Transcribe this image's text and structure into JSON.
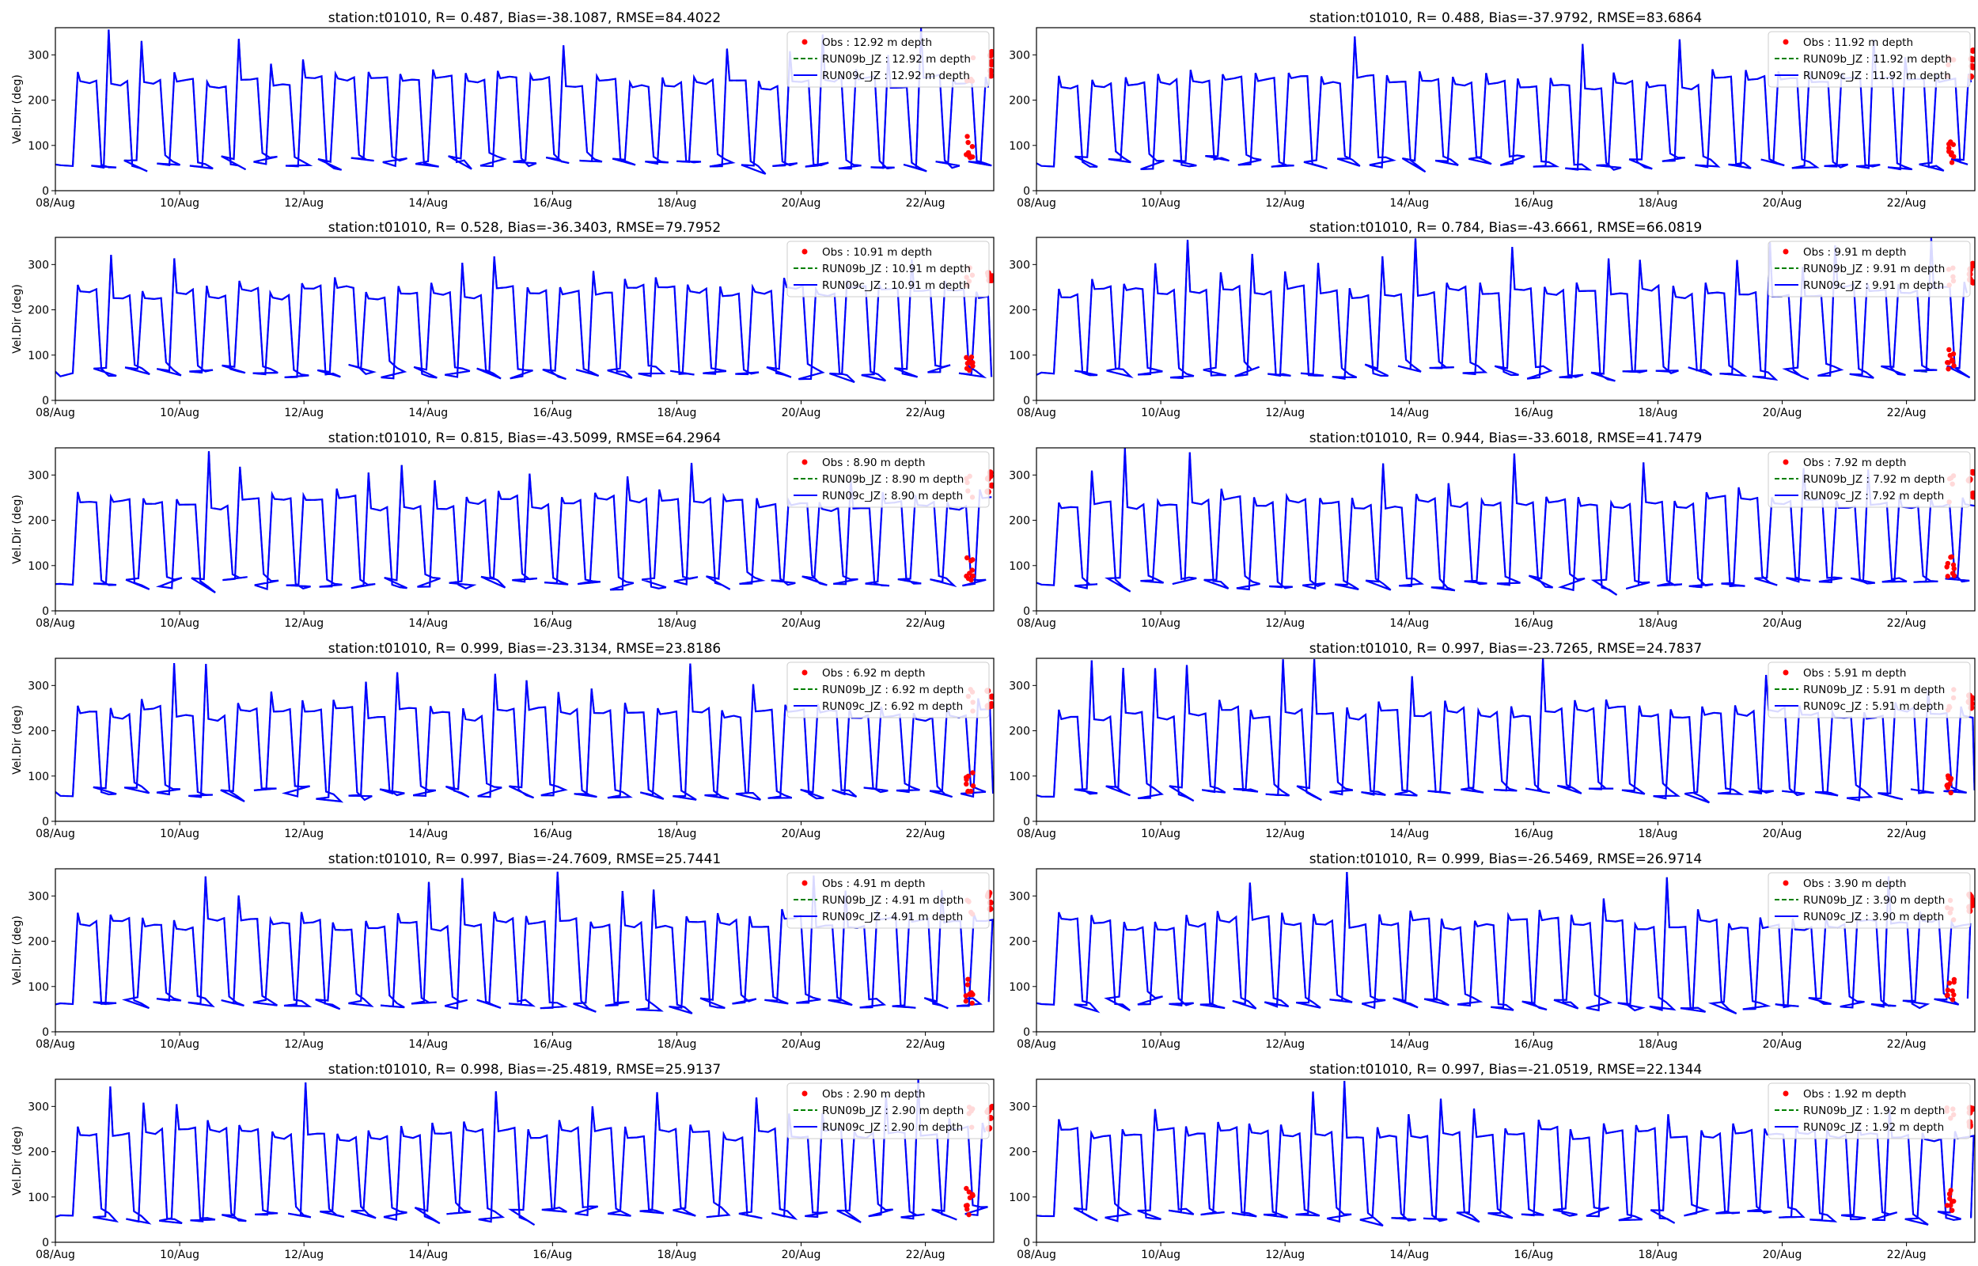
{
  "figure": {
    "background": "#ffffff"
  },
  "styles": {
    "obs_color": "#ff0000",
    "run09b_color": "#008000",
    "run09c_color": "#0000ff"
  },
  "chart_data": [
    {
      "type": "line",
      "title": "station:t01010, R= 0.487, Bias=-38.1087, RMSE=84.4022",
      "ylabel": "Vel.Dir (deg)",
      "ylim": [
        0,
        360
      ],
      "yticks": [
        0,
        100,
        200,
        300
      ],
      "xticks": [
        "08/Aug",
        "10/Aug",
        "12/Aug",
        "14/Aug",
        "16/Aug",
        "18/Aug",
        "20/Aug",
        "22/Aug"
      ],
      "legend": "top-right",
      "series": [
        {
          "name": "Obs : 12.92 m depth",
          "style": "dots"
        },
        {
          "name": "RUN09b_JZ : 12.92 m depth",
          "style": "dashed"
        },
        {
          "name": "RUN09c_JZ : 12.92 m depth",
          "style": "solid"
        }
      ]
    },
    {
      "type": "line",
      "title": "station:t01010, R= 0.488, Bias=-37.9792, RMSE=83.6864",
      "ylabel": "",
      "ylim": [
        0,
        360
      ],
      "yticks": [
        0,
        100,
        200,
        300
      ],
      "xticks": [
        "08/Aug",
        "10/Aug",
        "12/Aug",
        "14/Aug",
        "16/Aug",
        "18/Aug",
        "20/Aug",
        "22/Aug"
      ],
      "legend": "top-right",
      "series": [
        {
          "name": "Obs : 11.92 m depth",
          "style": "dots"
        },
        {
          "name": "RUN09b_JZ : 11.92 m depth",
          "style": "dashed"
        },
        {
          "name": "RUN09c_JZ : 11.92 m depth",
          "style": "solid"
        }
      ]
    },
    {
      "type": "line",
      "title": "station:t01010, R= 0.528, Bias=-36.3403, RMSE=79.7952",
      "ylabel": "Vel.Dir (deg)",
      "ylim": [
        0,
        360
      ],
      "yticks": [
        0,
        100,
        200,
        300
      ],
      "xticks": [
        "08/Aug",
        "10/Aug",
        "12/Aug",
        "14/Aug",
        "16/Aug",
        "18/Aug",
        "20/Aug",
        "22/Aug"
      ],
      "legend": "top-right",
      "series": [
        {
          "name": "Obs : 10.91 m depth",
          "style": "dots"
        },
        {
          "name": "RUN09b_JZ : 10.91 m depth",
          "style": "dashed"
        },
        {
          "name": "RUN09c_JZ : 10.91 m depth",
          "style": "solid"
        }
      ]
    },
    {
      "type": "line",
      "title": "station:t01010, R= 0.784, Bias=-43.6661, RMSE=66.0819",
      "ylabel": "",
      "ylim": [
        0,
        360
      ],
      "yticks": [
        0,
        100,
        200,
        300
      ],
      "xticks": [
        "08/Aug",
        "10/Aug",
        "12/Aug",
        "14/Aug",
        "16/Aug",
        "18/Aug",
        "20/Aug",
        "22/Aug"
      ],
      "legend": "top-right",
      "series": [
        {
          "name": "Obs : 9.91 m depth",
          "style": "dots"
        },
        {
          "name": "RUN09b_JZ : 9.91 m depth",
          "style": "dashed"
        },
        {
          "name": "RUN09c_JZ : 9.91 m depth",
          "style": "solid"
        }
      ]
    },
    {
      "type": "line",
      "title": "station:t01010, R= 0.815, Bias=-43.5099, RMSE=64.2964",
      "ylabel": "Vel.Dir (deg)",
      "ylim": [
        0,
        360
      ],
      "yticks": [
        0,
        100,
        200,
        300
      ],
      "xticks": [
        "08/Aug",
        "10/Aug",
        "12/Aug",
        "14/Aug",
        "16/Aug",
        "18/Aug",
        "20/Aug",
        "22/Aug"
      ],
      "legend": "top-right",
      "series": [
        {
          "name": "Obs : 8.90 m depth",
          "style": "dots"
        },
        {
          "name": "RUN09b_JZ : 8.90 m depth",
          "style": "dashed"
        },
        {
          "name": "RUN09c_JZ : 8.90 m depth",
          "style": "solid"
        }
      ]
    },
    {
      "type": "line",
      "title": "station:t01010, R= 0.944, Bias=-33.6018, RMSE=41.7479",
      "ylabel": "",
      "ylim": [
        0,
        360
      ],
      "yticks": [
        0,
        100,
        200,
        300
      ],
      "xticks": [
        "08/Aug",
        "10/Aug",
        "12/Aug",
        "14/Aug",
        "16/Aug",
        "18/Aug",
        "20/Aug",
        "22/Aug"
      ],
      "legend": "top-right",
      "series": [
        {
          "name": "Obs : 7.92 m depth",
          "style": "dots"
        },
        {
          "name": "RUN09b_JZ : 7.92 m depth",
          "style": "dashed"
        },
        {
          "name": "RUN09c_JZ : 7.92 m depth",
          "style": "solid"
        }
      ]
    },
    {
      "type": "line",
      "title": "station:t01010, R= 0.999, Bias=-23.3134, RMSE=23.8186",
      "ylabel": "Vel.Dir (deg)",
      "ylim": [
        0,
        360
      ],
      "yticks": [
        0,
        100,
        200,
        300
      ],
      "xticks": [
        "08/Aug",
        "10/Aug",
        "12/Aug",
        "14/Aug",
        "16/Aug",
        "18/Aug",
        "20/Aug",
        "22/Aug"
      ],
      "legend": "top-right",
      "series": [
        {
          "name": "Obs : 6.92 m depth",
          "style": "dots"
        },
        {
          "name": "RUN09b_JZ : 6.92 m depth",
          "style": "dashed"
        },
        {
          "name": "RUN09c_JZ : 6.92 m depth",
          "style": "solid"
        }
      ]
    },
    {
      "type": "line",
      "title": "station:t01010, R= 0.997, Bias=-23.7265, RMSE=24.7837",
      "ylabel": "",
      "ylim": [
        0,
        360
      ],
      "yticks": [
        0,
        100,
        200,
        300
      ],
      "xticks": [
        "08/Aug",
        "10/Aug",
        "12/Aug",
        "14/Aug",
        "16/Aug",
        "18/Aug",
        "20/Aug",
        "22/Aug"
      ],
      "legend": "top-right",
      "series": [
        {
          "name": "Obs : 5.91 m depth",
          "style": "dots"
        },
        {
          "name": "RUN09b_JZ : 5.91 m depth",
          "style": "dashed"
        },
        {
          "name": "RUN09c_JZ : 5.91 m depth",
          "style": "solid"
        }
      ]
    },
    {
      "type": "line",
      "title": "station:t01010, R= 0.997, Bias=-24.7609, RMSE=25.7441",
      "ylabel": "Vel.Dir (deg)",
      "ylim": [
        0,
        360
      ],
      "yticks": [
        0,
        100,
        200,
        300
      ],
      "xticks": [
        "08/Aug",
        "10/Aug",
        "12/Aug",
        "14/Aug",
        "16/Aug",
        "18/Aug",
        "20/Aug",
        "22/Aug"
      ],
      "legend": "top-right",
      "series": [
        {
          "name": "Obs : 4.91 m depth",
          "style": "dots"
        },
        {
          "name": "RUN09b_JZ : 4.91 m depth",
          "style": "dashed"
        },
        {
          "name": "RUN09c_JZ : 4.91 m depth",
          "style": "solid"
        }
      ]
    },
    {
      "type": "line",
      "title": "station:t01010, R= 0.999, Bias=-26.5469, RMSE=26.9714",
      "ylabel": "",
      "ylim": [
        0,
        360
      ],
      "yticks": [
        0,
        100,
        200,
        300
      ],
      "xticks": [
        "08/Aug",
        "10/Aug",
        "12/Aug",
        "14/Aug",
        "16/Aug",
        "18/Aug",
        "20/Aug",
        "22/Aug"
      ],
      "legend": "top-right",
      "series": [
        {
          "name": "Obs : 3.90 m depth",
          "style": "dots"
        },
        {
          "name": "RUN09b_JZ : 3.90 m depth",
          "style": "dashed"
        },
        {
          "name": "RUN09c_JZ : 3.90 m depth",
          "style": "solid"
        }
      ]
    },
    {
      "type": "line",
      "title": "station:t01010, R= 0.998, Bias=-25.4819, RMSE=25.9137",
      "ylabel": "Vel.Dir (deg)",
      "ylim": [
        0,
        360
      ],
      "yticks": [
        0,
        100,
        200,
        300
      ],
      "xticks": [
        "08/Aug",
        "10/Aug",
        "12/Aug",
        "14/Aug",
        "16/Aug",
        "18/Aug",
        "20/Aug",
        "22/Aug"
      ],
      "legend": "top-right",
      "series": [
        {
          "name": "Obs : 2.90 m depth",
          "style": "dots"
        },
        {
          "name": "RUN09b_JZ : 2.90 m depth",
          "style": "dashed"
        },
        {
          "name": "RUN09c_JZ : 2.90 m depth",
          "style": "solid"
        }
      ]
    },
    {
      "type": "line",
      "title": "station:t01010, R= 0.997, Bias=-21.0519, RMSE=22.1344",
      "ylabel": "",
      "ylim": [
        0,
        360
      ],
      "yticks": [
        0,
        100,
        200,
        300
      ],
      "xticks": [
        "08/Aug",
        "10/Aug",
        "12/Aug",
        "14/Aug",
        "16/Aug",
        "18/Aug",
        "20/Aug",
        "22/Aug"
      ],
      "legend": "top-right",
      "series": [
        {
          "name": "Obs : 1.92 m depth",
          "style": "dots"
        },
        {
          "name": "RUN09b_JZ : 1.92 m depth",
          "style": "dashed"
        },
        {
          "name": "RUN09c_JZ : 1.92 m depth",
          "style": "solid"
        }
      ]
    }
  ]
}
